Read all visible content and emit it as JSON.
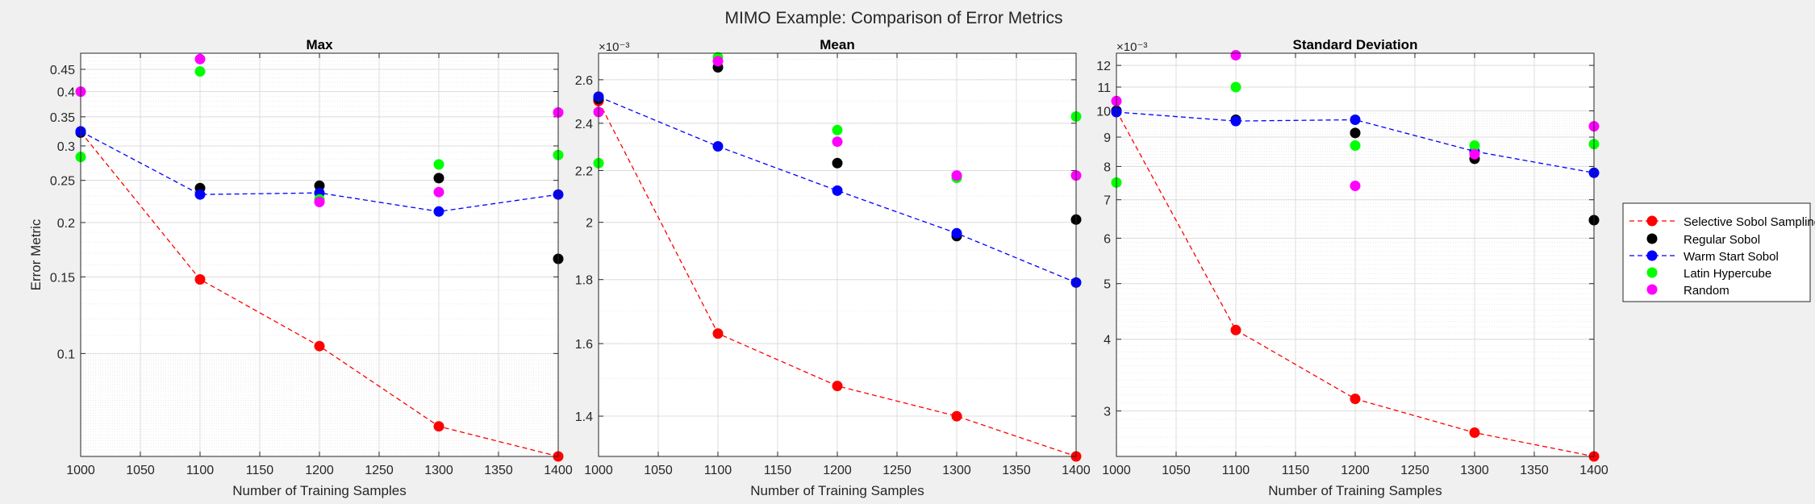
{
  "figure": {
    "title": "MIMO Example: Comparison of Error Metrics",
    "background": "#f0f0f0"
  },
  "series_styles": [
    {
      "name": "Selective Sobol Sampling",
      "color": "#ff0000",
      "line": true
    },
    {
      "name": "Regular Sobol",
      "color": "#000000",
      "line": false
    },
    {
      "name": "Warm Start Sobol",
      "color": "#0000ff",
      "line": true
    },
    {
      "name": "Latin Hypercube",
      "color": "#00ff00",
      "line": false
    },
    {
      "name": "Random",
      "color": "#ff00ff",
      "line": false
    }
  ],
  "chart_data": [
    {
      "type": "line",
      "title": "Max",
      "xlabel": "Number of Training Samples",
      "ylabel": "Error Metric",
      "yscale": "log",
      "exponent_label": "",
      "x": [
        1000,
        1100,
        1200,
        1300,
        1400
      ],
      "xlim": [
        1000,
        1400
      ],
      "xticks": [
        1000,
        1050,
        1100,
        1150,
        1200,
        1250,
        1300,
        1350,
        1400
      ],
      "ylim": [
        0.058,
        0.49
      ],
      "yticks": [
        0.1,
        0.15,
        0.2,
        0.25,
        0.3,
        0.35,
        0.4,
        0.45
      ],
      "ytick_labels": [
        "0.1",
        "0.15",
        "0.2",
        "0.25",
        "0.3",
        "0.35",
        "0.4",
        "0.45"
      ],
      "grid": true,
      "series": [
        {
          "name": "Selective Sobol Sampling",
          "values": [
            0.323,
            0.148,
            0.104,
            0.068,
            0.058
          ]
        },
        {
          "name": "Regular Sobol",
          "values": [
            0.322,
            0.24,
            0.243,
            0.253,
            0.165
          ]
        },
        {
          "name": "Warm Start Sobol",
          "values": [
            0.324,
            0.232,
            0.234,
            0.212,
            0.232
          ]
        },
        {
          "name": "Latin Hypercube",
          "values": [
            0.283,
            0.445,
            0.226,
            0.272,
            0.286
          ]
        },
        {
          "name": "Random",
          "values": [
            0.4,
            0.475,
            0.223,
            0.235,
            0.358
          ]
        }
      ]
    },
    {
      "type": "line",
      "title": "Mean",
      "xlabel": "Number of Training Samples",
      "ylabel": "",
      "yscale": "log",
      "exponent_label": "×10⁻³",
      "x": [
        1000,
        1100,
        1200,
        1300,
        1400
      ],
      "xlim": [
        1000,
        1400
      ],
      "xticks": [
        1000,
        1050,
        1100,
        1150,
        1200,
        1250,
        1300,
        1350,
        1400
      ],
      "ylim": [
        1.3,
        2.73
      ],
      "yticks": [
        1.4,
        1.6,
        1.8,
        2.0,
        2.2,
        2.4,
        2.6
      ],
      "ytick_labels": [
        "1.4",
        "1.6",
        "1.8",
        "2",
        "2.2",
        "2.4",
        "2.6"
      ],
      "grid": true,
      "series": [
        {
          "name": "Selective Sobol Sampling",
          "values": [
            2.5,
            1.63,
            1.48,
            1.4,
            1.3
          ]
        },
        {
          "name": "Regular Sobol",
          "values": [
            2.51,
            2.66,
            2.23,
            1.95,
            2.01
          ]
        },
        {
          "name": "Warm Start Sobol",
          "values": [
            2.52,
            2.3,
            2.12,
            1.96,
            1.79
          ]
        },
        {
          "name": "Latin Hypercube",
          "values": [
            2.23,
            2.71,
            2.37,
            2.17,
            2.43
          ]
        },
        {
          "name": "Random",
          "values": [
            2.45,
            2.69,
            2.32,
            2.18,
            2.18
          ]
        }
      ]
    },
    {
      "type": "line",
      "title": "Standard Deviation",
      "xlabel": "Number of Training Samples",
      "ylabel": "",
      "yscale": "log",
      "exponent_label": "×10⁻³",
      "x": [
        1000,
        1100,
        1200,
        1300,
        1400
      ],
      "xlim": [
        1000,
        1400
      ],
      "xticks": [
        1000,
        1050,
        1100,
        1150,
        1200,
        1250,
        1300,
        1350,
        1400
      ],
      "ylim": [
        2.5,
        12.6
      ],
      "yticks": [
        3,
        4,
        5,
        6,
        7,
        8,
        9,
        10,
        11,
        12
      ],
      "ytick_labels": [
        "3",
        "4",
        "5",
        "6",
        "7",
        "8",
        "9",
        "10",
        "11",
        "12"
      ],
      "grid": true,
      "series": [
        {
          "name": "Selective Sobol Sampling",
          "values": [
            10.0,
            4.15,
            3.15,
            2.75,
            2.5
          ]
        },
        {
          "name": "Regular Sobol",
          "values": [
            10.0,
            9.65,
            9.15,
            8.25,
            6.45
          ]
        },
        {
          "name": "Warm Start Sobol",
          "values": [
            9.95,
            9.6,
            9.65,
            8.5,
            7.8
          ]
        },
        {
          "name": "Latin Hypercube",
          "values": [
            7.5,
            11.0,
            8.7,
            8.7,
            8.75
          ]
        },
        {
          "name": "Random",
          "values": [
            10.4,
            12.5,
            7.4,
            8.4,
            9.4
          ]
        }
      ]
    }
  ]
}
